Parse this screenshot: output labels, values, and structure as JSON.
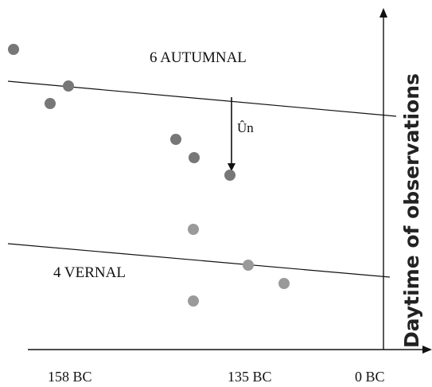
{
  "labels": {
    "autumnal": "6 AUTUMNAL",
    "vernal": "4 VERNAL",
    "shift": "Ûn",
    "y_axis": "Daytime of observations",
    "x_ticks": [
      "158 BC",
      "135 BC",
      "0 BC"
    ]
  },
  "colors": {
    "axis": "#111111",
    "line": "#111111",
    "dot_dark": "#777777",
    "dot_light": "#9a9a9a"
  }
}
